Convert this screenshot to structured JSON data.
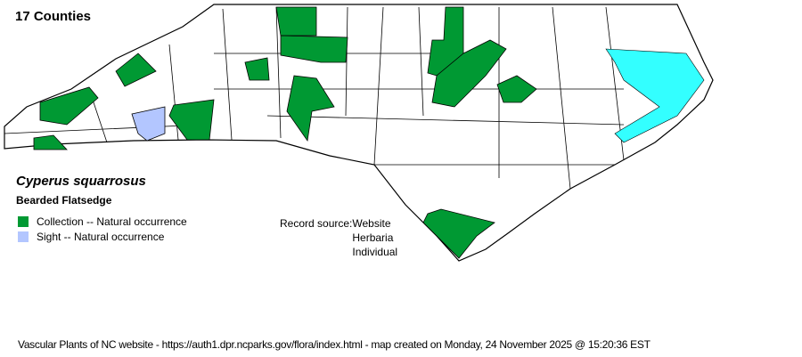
{
  "county_count": "17 Counties",
  "species": {
    "scientific_name": "Cyperus squarrosus",
    "common_name": "Bearded Flatsedge"
  },
  "legend": [
    {
      "label": "Collection -- Natural occurrence",
      "color": "#009933"
    },
    {
      "label": "Sight -- Natural occurrence",
      "color": "#b3c6ff"
    }
  ],
  "record_source": {
    "label": "Record source:",
    "values": [
      "Website",
      "Herbaria",
      "Individual"
    ]
  },
  "colors": {
    "sound_water": "#33ffff",
    "county_fill": "#ffffff",
    "county_border": "#000000"
  },
  "footer": "Vascular Plants of NC website - https://auth1.dpr.ncparks.gov/flora/index.html - map created on Monday, 24 November 2025 @ 15:20:36 EST"
}
